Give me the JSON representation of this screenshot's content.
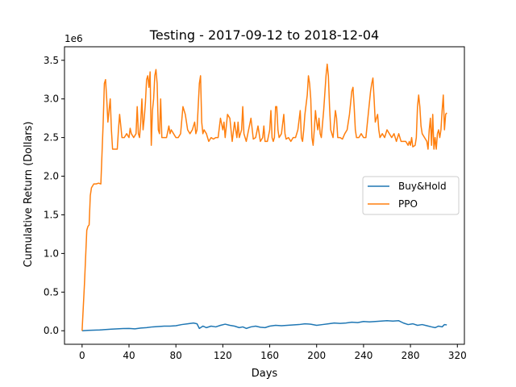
{
  "chart_data": {
    "type": "line",
    "title": "Testing - 2017-09-12 to 2018-12-04",
    "xlabel": "Days",
    "ylabel": "Cumulative Return (Dollars)",
    "y_offset_text": "1e6",
    "xlim": [
      -15,
      326
    ],
    "ylim": [
      -0.175,
      3.675
    ],
    "x_ticks": [
      0,
      40,
      80,
      120,
      160,
      200,
      240,
      280,
      320
    ],
    "y_ticks": [
      0.0,
      0.5,
      1.0,
      1.5,
      2.0,
      2.5,
      3.0,
      3.5
    ],
    "y_tick_labels": [
      "0.0",
      "0.5",
      "1.0",
      "1.5",
      "2.0",
      "2.5",
      "3.0",
      "3.5"
    ],
    "grid": false,
    "legend_position": "center-right",
    "series": [
      {
        "name": "Buy&Hold",
        "color": "#1f77b4",
        "points": [
          [
            0,
            0.0
          ],
          [
            5,
            0.005
          ],
          [
            10,
            0.008
          ],
          [
            15,
            0.01
          ],
          [
            20,
            0.015
          ],
          [
            25,
            0.02
          ],
          [
            30,
            0.025
          ],
          [
            35,
            0.028
          ],
          [
            40,
            0.03
          ],
          [
            45,
            0.025
          ],
          [
            50,
            0.035
          ],
          [
            55,
            0.04
          ],
          [
            60,
            0.05
          ],
          [
            65,
            0.055
          ],
          [
            70,
            0.06
          ],
          [
            75,
            0.06
          ],
          [
            80,
            0.065
          ],
          [
            85,
            0.08
          ],
          [
            90,
            0.09
          ],
          [
            95,
            0.1
          ],
          [
            98,
            0.09
          ],
          [
            100,
            0.03
          ],
          [
            103,
            0.06
          ],
          [
            106,
            0.04
          ],
          [
            110,
            0.06
          ],
          [
            114,
            0.05
          ],
          [
            118,
            0.07
          ],
          [
            122,
            0.085
          ],
          [
            126,
            0.07
          ],
          [
            130,
            0.06
          ],
          [
            134,
            0.04
          ],
          [
            137,
            0.05
          ],
          [
            140,
            0.03
          ],
          [
            144,
            0.05
          ],
          [
            148,
            0.06
          ],
          [
            152,
            0.045
          ],
          [
            156,
            0.04
          ],
          [
            160,
            0.06
          ],
          [
            165,
            0.07
          ],
          [
            170,
            0.065
          ],
          [
            175,
            0.07
          ],
          [
            180,
            0.075
          ],
          [
            185,
            0.08
          ],
          [
            190,
            0.09
          ],
          [
            195,
            0.085
          ],
          [
            200,
            0.07
          ],
          [
            205,
            0.08
          ],
          [
            210,
            0.09
          ],
          [
            215,
            0.1
          ],
          [
            220,
            0.095
          ],
          [
            225,
            0.1
          ],
          [
            230,
            0.11
          ],
          [
            235,
            0.105
          ],
          [
            240,
            0.12
          ],
          [
            245,
            0.115
          ],
          [
            250,
            0.12
          ],
          [
            255,
            0.125
          ],
          [
            260,
            0.13
          ],
          [
            265,
            0.125
          ],
          [
            270,
            0.13
          ],
          [
            274,
            0.1
          ],
          [
            278,
            0.08
          ],
          [
            282,
            0.09
          ],
          [
            286,
            0.07
          ],
          [
            290,
            0.08
          ],
          [
            294,
            0.065
          ],
          [
            298,
            0.05
          ],
          [
            301,
            0.04
          ],
          [
            304,
            0.06
          ],
          [
            307,
            0.05
          ],
          [
            309,
            0.08
          ],
          [
            311,
            0.075
          ]
        ]
      },
      {
        "name": "PPO",
        "color": "#ff7f0e",
        "points": [
          [
            0,
            0.0
          ],
          [
            2,
            0.6
          ],
          [
            4,
            1.3
          ],
          [
            5,
            1.35
          ],
          [
            6,
            1.37
          ],
          [
            7,
            1.75
          ],
          [
            8,
            1.85
          ],
          [
            10,
            1.9
          ],
          [
            12,
            1.9
          ],
          [
            14,
            1.91
          ],
          [
            16,
            1.9
          ],
          [
            18,
            2.7
          ],
          [
            19,
            3.2
          ],
          [
            20,
            3.25
          ],
          [
            21,
            3.0
          ],
          [
            22,
            2.7
          ],
          [
            23,
            2.85
          ],
          [
            24,
            3.0
          ],
          [
            25,
            2.6
          ],
          [
            26,
            2.35
          ],
          [
            28,
            2.35
          ],
          [
            30,
            2.35
          ],
          [
            31,
            2.6
          ],
          [
            32,
            2.8
          ],
          [
            33,
            2.65
          ],
          [
            34,
            2.5
          ],
          [
            36,
            2.5
          ],
          [
            38,
            2.55
          ],
          [
            40,
            2.5
          ],
          [
            41,
            2.62
          ],
          [
            42,
            2.55
          ],
          [
            44,
            2.5
          ],
          [
            46,
            2.55
          ],
          [
            47,
            2.9
          ],
          [
            48,
            2.55
          ],
          [
            49,
            2.5
          ],
          [
            50,
            2.7
          ],
          [
            51,
            3.0
          ],
          [
            52,
            2.6
          ],
          [
            53,
            2.75
          ],
          [
            54,
            2.95
          ],
          [
            55,
            3.25
          ],
          [
            56,
            3.3
          ],
          [
            57,
            3.15
          ],
          [
            58,
            3.35
          ],
          [
            59,
            2.4
          ],
          [
            60,
            2.85
          ],
          [
            61,
            3.0
          ],
          [
            62,
            3.3
          ],
          [
            63,
            3.38
          ],
          [
            64,
            3.2
          ],
          [
            65,
            2.6
          ],
          [
            66,
            2.55
          ],
          [
            67,
            3.0
          ],
          [
            68,
            2.5
          ],
          [
            72,
            2.5
          ],
          [
            74,
            2.65
          ],
          [
            75,
            2.55
          ],
          [
            76,
            2.6
          ],
          [
            78,
            2.55
          ],
          [
            80,
            2.5
          ],
          [
            82,
            2.5
          ],
          [
            84,
            2.55
          ],
          [
            86,
            2.9
          ],
          [
            88,
            2.8
          ],
          [
            90,
            2.6
          ],
          [
            92,
            2.55
          ],
          [
            94,
            2.6
          ],
          [
            96,
            2.7
          ],
          [
            97,
            2.55
          ],
          [
            98,
            2.6
          ],
          [
            100,
            3.2
          ],
          [
            101,
            3.3
          ],
          [
            102,
            2.7
          ],
          [
            103,
            2.55
          ],
          [
            104,
            2.6
          ],
          [
            106,
            2.55
          ],
          [
            108,
            2.45
          ],
          [
            110,
            2.5
          ],
          [
            112,
            2.48
          ],
          [
            114,
            2.5
          ],
          [
            116,
            2.5
          ],
          [
            118,
            2.75
          ],
          [
            120,
            2.6
          ],
          [
            121,
            2.7
          ],
          [
            122,
            2.5
          ],
          [
            124,
            2.8
          ],
          [
            126,
            2.75
          ],
          [
            128,
            2.45
          ],
          [
            130,
            2.7
          ],
          [
            132,
            2.5
          ],
          [
            133,
            2.7
          ],
          [
            134,
            2.5
          ],
          [
            136,
            2.6
          ],
          [
            137,
            2.9
          ],
          [
            138,
            2.55
          ],
          [
            140,
            2.45
          ],
          [
            142,
            2.6
          ],
          [
            144,
            2.75
          ],
          [
            146,
            2.48
          ],
          [
            148,
            2.5
          ],
          [
            150,
            2.65
          ],
          [
            152,
            2.45
          ],
          [
            154,
            2.5
          ],
          [
            155,
            2.65
          ],
          [
            156,
            2.45
          ],
          [
            158,
            2.45
          ],
          [
            160,
            2.6
          ],
          [
            161,
            2.85
          ],
          [
            162,
            2.5
          ],
          [
            163,
            2.45
          ],
          [
            164,
            2.5
          ],
          [
            165,
            2.9
          ],
          [
            166,
            2.9
          ],
          [
            167,
            2.6
          ],
          [
            168,
            2.5
          ],
          [
            170,
            2.55
          ],
          [
            172,
            2.8
          ],
          [
            173,
            2.55
          ],
          [
            174,
            2.48
          ],
          [
            176,
            2.5
          ],
          [
            178,
            2.45
          ],
          [
            180,
            2.5
          ],
          [
            182,
            2.5
          ],
          [
            184,
            2.6
          ],
          [
            186,
            2.85
          ],
          [
            187,
            2.5
          ],
          [
            188,
            2.45
          ],
          [
            189,
            2.6
          ],
          [
            190,
            2.8
          ],
          [
            192,
            3.05
          ],
          [
            193,
            3.3
          ],
          [
            194,
            3.2
          ],
          [
            195,
            3.0
          ],
          [
            196,
            2.5
          ],
          [
            197,
            2.4
          ],
          [
            198,
            2.6
          ],
          [
            199,
            2.85
          ],
          [
            200,
            2.7
          ],
          [
            201,
            2.6
          ],
          [
            202,
            2.75
          ],
          [
            203,
            2.55
          ],
          [
            204,
            2.5
          ],
          [
            206,
            2.85
          ],
          [
            208,
            3.3
          ],
          [
            209,
            3.45
          ],
          [
            210,
            3.3
          ],
          [
            211,
            2.9
          ],
          [
            212,
            2.6
          ],
          [
            214,
            2.5
          ],
          [
            216,
            2.85
          ],
          [
            217,
            2.75
          ],
          [
            218,
            2.5
          ],
          [
            220,
            2.5
          ],
          [
            222,
            2.48
          ],
          [
            224,
            2.55
          ],
          [
            226,
            2.6
          ],
          [
            228,
            2.8
          ],
          [
            230,
            3.1
          ],
          [
            231,
            3.15
          ],
          [
            232,
            2.9
          ],
          [
            233,
            2.6
          ],
          [
            234,
            2.5
          ],
          [
            236,
            2.5
          ],
          [
            238,
            2.55
          ],
          [
            240,
            2.5
          ],
          [
            242,
            2.5
          ],
          [
            244,
            2.8
          ],
          [
            246,
            3.1
          ],
          [
            247,
            3.2
          ],
          [
            248,
            3.27
          ],
          [
            249,
            3.0
          ],
          [
            250,
            2.7
          ],
          [
            252,
            2.8
          ],
          [
            253,
            2.6
          ],
          [
            254,
            2.5
          ],
          [
            256,
            2.55
          ],
          [
            258,
            2.5
          ],
          [
            260,
            2.6
          ],
          [
            262,
            2.55
          ],
          [
            264,
            2.5
          ],
          [
            266,
            2.55
          ],
          [
            268,
            2.45
          ],
          [
            270,
            2.55
          ],
          [
            272,
            2.45
          ],
          [
            274,
            2.45
          ],
          [
            276,
            2.45
          ],
          [
            278,
            2.4
          ],
          [
            279,
            2.45
          ],
          [
            280,
            2.4
          ],
          [
            281,
            2.5
          ],
          [
            282,
            2.38
          ],
          [
            284,
            2.4
          ],
          [
            285,
            2.5
          ],
          [
            286,
            2.9
          ],
          [
            287,
            3.05
          ],
          [
            288,
            2.9
          ],
          [
            289,
            2.65
          ],
          [
            290,
            2.55
          ],
          [
            292,
            2.5
          ],
          [
            294,
            2.45
          ],
          [
            295,
            2.35
          ],
          [
            296,
            2.6
          ],
          [
            297,
            2.75
          ],
          [
            298,
            2.4
          ],
          [
            299,
            2.8
          ],
          [
            300,
            2.35
          ],
          [
            301,
            2.5
          ],
          [
            302,
            2.35
          ],
          [
            303,
            2.55
          ],
          [
            304,
            2.6
          ],
          [
            305,
            2.5
          ],
          [
            306,
            2.6
          ],
          [
            307,
            2.85
          ],
          [
            308,
            3.05
          ],
          [
            309,
            2.6
          ],
          [
            310,
            2.8
          ],
          [
            311,
            2.82
          ]
        ]
      }
    ]
  }
}
